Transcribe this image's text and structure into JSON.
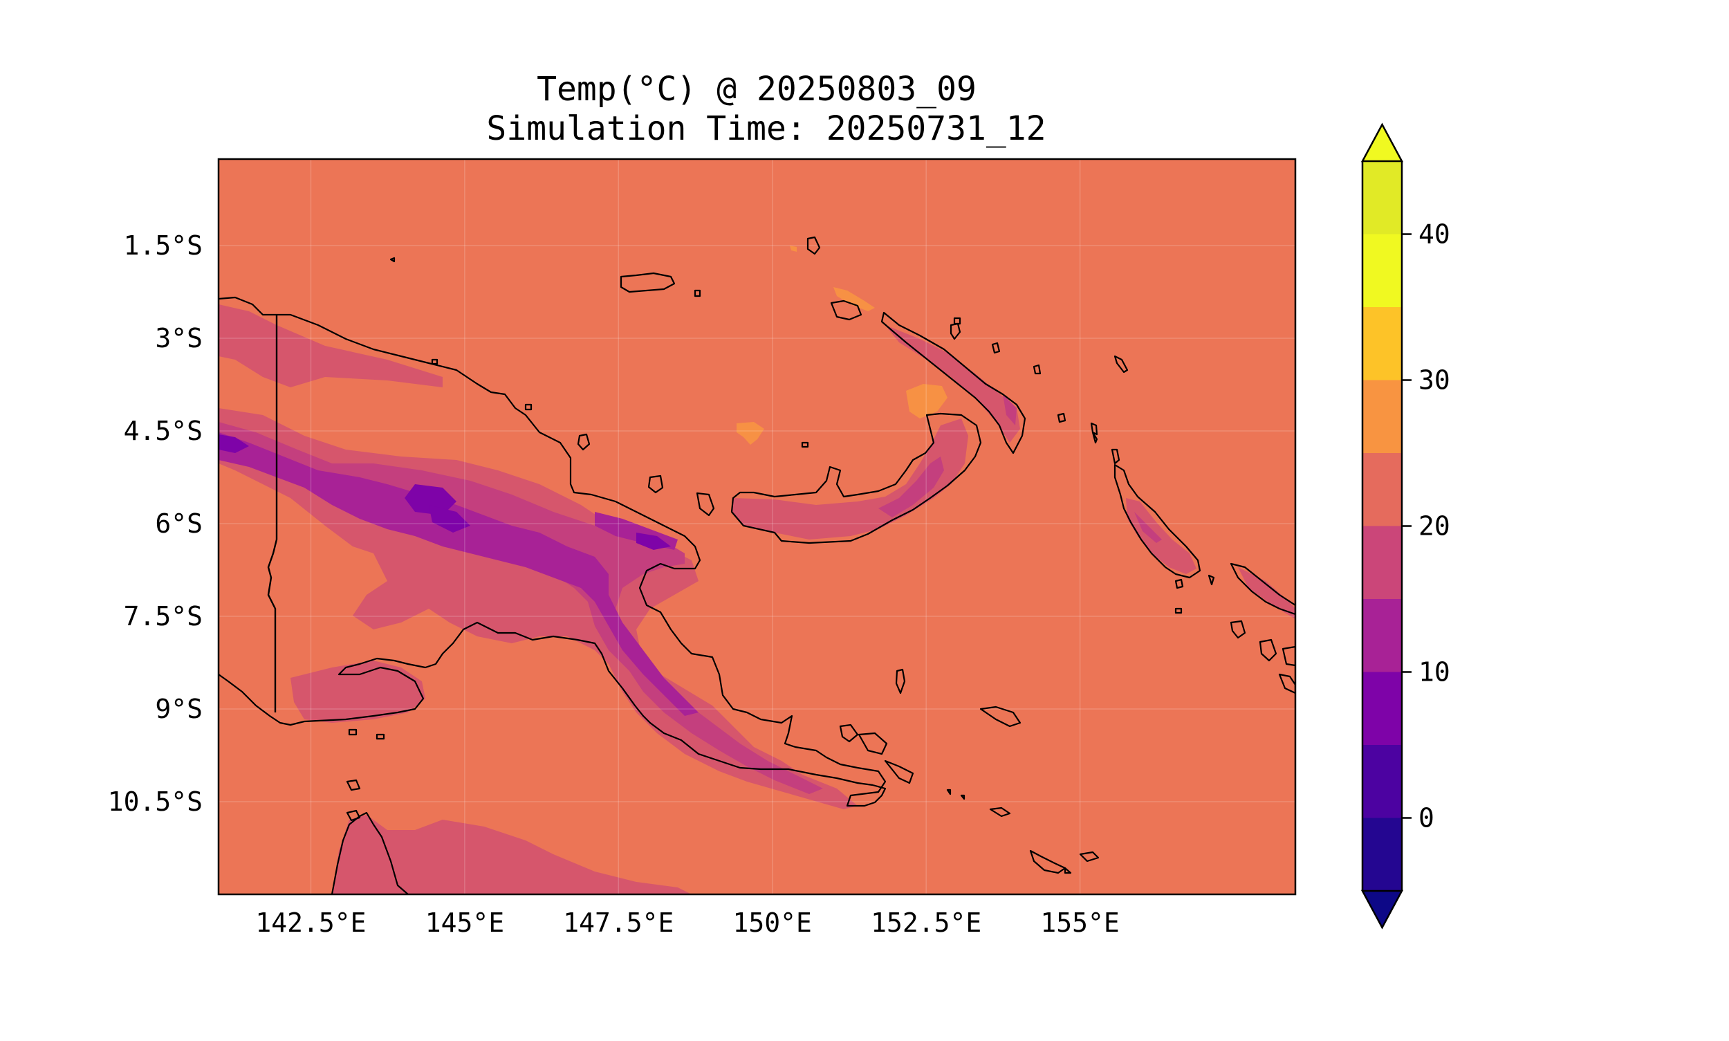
{
  "title": {
    "line1": "Temp(°C) @ 20250803_09",
    "line2": "Simulation Time: 20250731_12"
  },
  "map": {
    "x_ticks": [
      {
        "lon": 142.5,
        "label": "142.5°E"
      },
      {
        "lon": 145.0,
        "label": "145°E"
      },
      {
        "lon": 147.5,
        "label": "147.5°E"
      },
      {
        "lon": 150.0,
        "label": "150°E"
      },
      {
        "lon": 152.5,
        "label": "152.5°E"
      },
      {
        "lon": 155.0,
        "label": "155°E"
      }
    ],
    "y_ticks": [
      {
        "lat": -1.5,
        "label": "1.5°S"
      },
      {
        "lat": -3.0,
        "label": "3°S"
      },
      {
        "lat": -4.5,
        "label": "4.5°S"
      },
      {
        "lat": -6.0,
        "label": "6°S"
      },
      {
        "lat": -7.5,
        "label": "7.5°S"
      },
      {
        "lat": -9.0,
        "label": "9°S"
      },
      {
        "lat": -10.5,
        "label": "10.5°S"
      }
    ],
    "lon_range": [
      141.0,
      158.5
    ],
    "lat_range": [
      -12.0,
      -0.1
    ],
    "background_colormap_level_color": "#ec7556"
  },
  "colorbar": {
    "colormap": "plasma",
    "extend": "both",
    "levels": [
      -5,
      0,
      5,
      10,
      15,
      20,
      25,
      30,
      35,
      40,
      45
    ],
    "colors": [
      "#240691",
      "#4c02a1",
      "#7e03a8",
      "#a82296",
      "#cb4679",
      "#e56b5d",
      "#f89441",
      "#fdc328",
      "#f0f921",
      "#e1ea26"
    ],
    "under_color": "#0d0887",
    "over_color": "#f0f921",
    "tick_values": [
      0,
      10,
      20,
      30,
      40
    ],
    "tick_labels": [
      "0",
      "10",
      "20",
      "30",
      "40"
    ]
  },
  "colors": {
    "warm_sea": "#ec7556",
    "level_20_25": "#d6566c",
    "level_15_20": "#c43f7e",
    "level_10_15": "#a82296",
    "level_5_10": "#7e03a8",
    "level_30_35": "#f79144"
  }
}
